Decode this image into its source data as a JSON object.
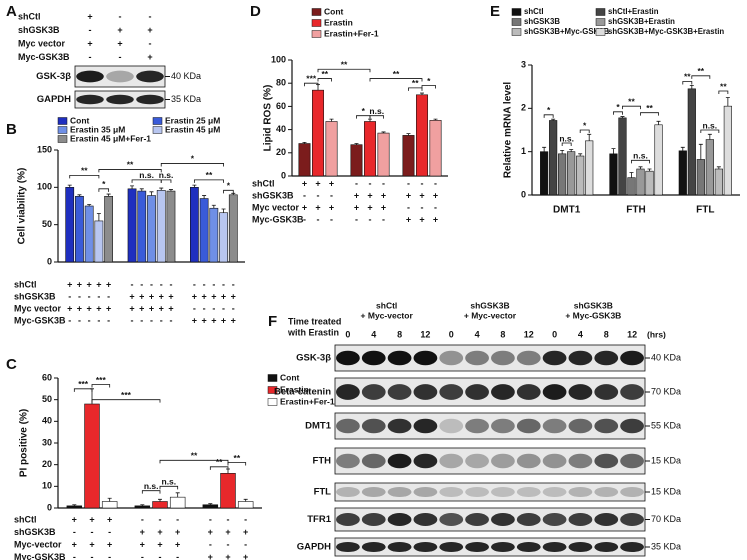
{
  "chart_data": [
    {
      "type": "bar",
      "label": "B",
      "ylabel": "Cell viability (%)",
      "ylim": [
        0,
        150
      ],
      "yticks": [
        0,
        50,
        100,
        150
      ],
      "series": [
        {
          "name": "Cont",
          "color": "#1f2fbf",
          "values": [
            100,
            98,
            100
          ],
          "errors": [
            3,
            4,
            3
          ]
        },
        {
          "name": "Erastin 25 μM",
          "color": "#3a5bd9",
          "values": [
            88,
            95,
            85
          ],
          "errors": [
            2,
            3,
            4
          ]
        },
        {
          "name": "Erastin 35 μM",
          "color": "#6f8fe6",
          "values": [
            75,
            89,
            72
          ],
          "errors": [
            2,
            5,
            4
          ]
        },
        {
          "name": "Erastin 45 μM",
          "color": "#b8c6f0",
          "values": [
            55,
            96,
            66
          ],
          "errors": [
            10,
            3,
            5
          ]
        },
        {
          "name": "Erastin 45 μM+Fer-1",
          "color": "#8c8c8c",
          "values": [
            88,
            95,
            90
          ],
          "errors": [
            3,
            2,
            2
          ]
        }
      ],
      "conditions": [
        {
          "label": "shCtl",
          "signs": [
            "+",
            "+",
            "+",
            "+",
            "+",
            "-",
            "-",
            "-",
            "-",
            "-",
            "-",
            "-",
            "-",
            "-",
            "-"
          ]
        },
        {
          "label": "shGSK3B",
          "signs": [
            "-",
            "-",
            "-",
            "-",
            "-",
            "+",
            "+",
            "+",
            "+",
            "+",
            "+",
            "+",
            "+",
            "+",
            "+"
          ]
        },
        {
          "label": "Myc vector",
          "signs": [
            "+",
            "+",
            "+",
            "+",
            "+",
            "+",
            "+",
            "+",
            "+",
            "+",
            "-",
            "-",
            "-",
            "-",
            "-"
          ]
        },
        {
          "label": "Myc-GSK3B",
          "signs": [
            "-",
            "-",
            "-",
            "-",
            "-",
            "-",
            "-",
            "-",
            "-",
            "-",
            "+",
            "+",
            "+",
            "+",
            "+"
          ]
        }
      ],
      "annotations": [
        "**",
        "*",
        "**",
        "*",
        "n.s.",
        "n.s.",
        "**",
        "*"
      ]
    },
    {
      "type": "bar",
      "label": "C",
      "ylabel": "PI positive (%)",
      "ylim": [
        0,
        60
      ],
      "yticks": [
        0,
        10,
        20,
        30,
        40,
        50,
        60
      ],
      "series": [
        {
          "name": "Cont",
          "color": "#111111",
          "values": [
            1,
            1,
            1.5
          ],
          "errors": [
            0.5,
            0.5,
            0.5
          ]
        },
        {
          "name": "Erastin",
          "color": "#e8282b",
          "values": [
            48,
            3,
            16
          ],
          "errors": [
            7,
            1,
            2
          ]
        },
        {
          "name": "Erastin+Fer-1",
          "color": "#ffffff",
          "values": [
            3,
            5,
            3
          ],
          "errors": [
            1.5,
            2,
            1
          ]
        }
      ],
      "conditions": [
        {
          "label": "shCtl",
          "signs": [
            "+",
            "+",
            "+",
            "-",
            "-",
            "-",
            "-",
            "-",
            "-"
          ]
        },
        {
          "label": "shGSK3B",
          "signs": [
            "-",
            "-",
            "-",
            "+",
            "+",
            "+",
            "+",
            "+",
            "+"
          ]
        },
        {
          "label": "Myc-vector",
          "signs": [
            "+",
            "+",
            "+",
            "+",
            "+",
            "+",
            "-",
            "-",
            "-"
          ]
        },
        {
          "label": "Myc-GSK3B",
          "signs": [
            "-",
            "-",
            "-",
            "-",
            "-",
            "-",
            "+",
            "+",
            "+"
          ]
        }
      ],
      "annotations": [
        "***",
        "***",
        "***",
        "n.s.",
        "n.s.",
        "**",
        "**",
        "**"
      ]
    },
    {
      "type": "bar",
      "label": "D",
      "ylabel": "Lipid ROS (%)",
      "ylim": [
        0,
        100
      ],
      "yticks": [
        0,
        20,
        40,
        60,
        80,
        100
      ],
      "series": [
        {
          "name": "Cont",
          "color": "#7b1c1c",
          "values": [
            28,
            27,
            35
          ],
          "errors": [
            1,
            1,
            1.5
          ]
        },
        {
          "name": "Erastin",
          "color": "#e8282b",
          "values": [
            74,
            47,
            70
          ],
          "errors": [
            5,
            2,
            1.5
          ]
        },
        {
          "name": "Erastin+Fer-1",
          "color": "#f0a0a0",
          "values": [
            47,
            37,
            48
          ],
          "errors": [
            2,
            1,
            1
          ]
        }
      ],
      "conditions": [
        {
          "label": "shCtl",
          "signs": [
            "+",
            "+",
            "+",
            "-",
            "-",
            "-",
            "-",
            "-",
            "-"
          ]
        },
        {
          "label": "shGSK3B",
          "signs": [
            "-",
            "-",
            "-",
            "+",
            "+",
            "+",
            "+",
            "+",
            "+"
          ]
        },
        {
          "label": "Myc vector",
          "signs": [
            "+",
            "+",
            "+",
            "+",
            "+",
            "+",
            "-",
            "-",
            "-"
          ]
        },
        {
          "label": "Myc-GSK3B",
          "signs": [
            "-",
            "-",
            "-",
            "-",
            "-",
            "-",
            "+",
            "+",
            "+"
          ]
        }
      ],
      "annotations": [
        "***",
        "**",
        "**",
        "*",
        "n.s.",
        "**",
        "**",
        "*"
      ]
    },
    {
      "type": "bar",
      "label": "E",
      "ylabel": "Relative mRNA level",
      "ylim": [
        0,
        3
      ],
      "yticks": [
        0,
        1,
        2,
        3
      ],
      "categories": [
        "DMT1",
        "FTH",
        "FTL"
      ],
      "series": [
        {
          "name": "shCtl",
          "color": "#111111",
          "values": [
            1.0,
            0.95,
            1.02
          ],
          "errors": [
            0.1,
            0.12,
            0.08
          ]
        },
        {
          "name": "shCtl+Erastin",
          "color": "#444444",
          "values": [
            1.72,
            1.78,
            2.45
          ],
          "errors": [
            0.03,
            0.03,
            0.08
          ]
        },
        {
          "name": "shGSK3B",
          "color": "#777777",
          "values": [
            0.95,
            0.4,
            0.82
          ],
          "errors": [
            0.08,
            0.12,
            0.35
          ]
        },
        {
          "name": "shGSK3B+Erastin",
          "color": "#999999",
          "values": [
            1.0,
            0.6,
            1.28
          ],
          "errors": [
            0.05,
            0.05,
            0.12
          ]
        },
        {
          "name": "shGSK3B+Myc-GSK3B",
          "color": "#bbbbbb",
          "values": [
            0.9,
            0.55,
            0.6
          ],
          "errors": [
            0.05,
            0.05,
            0.05
          ]
        },
        {
          "name": "shGSK3B+Myc-GSK3B+Erastin",
          "color": "#dddddd",
          "values": [
            1.25,
            1.62,
            2.05
          ],
          "errors": [
            0.15,
            0.08,
            0.2
          ]
        }
      ],
      "annotations": [
        "*",
        "n.s.",
        "*",
        "*",
        "**",
        "n.s.",
        "**",
        "**",
        "**",
        "n.s.",
        "**"
      ]
    }
  ],
  "blot_a": {
    "label": "A",
    "rows": [
      {
        "label": "shCtl",
        "signs": [
          "+",
          "-",
          "-"
        ]
      },
      {
        "label": "shGSK3B",
        "signs": [
          "-",
          "+",
          "+"
        ]
      },
      {
        "label": "Myc vector",
        "signs": [
          "+",
          "+",
          "-"
        ]
      },
      {
        "label": "Myc-GSK3B",
        "signs": [
          "-",
          "-",
          "+"
        ]
      }
    ],
    "bands": [
      {
        "name": "GSK-3β",
        "size": "40 KDa"
      },
      {
        "name": "GAPDH",
        "size": "35 KDa"
      }
    ]
  },
  "blot_f": {
    "label": "F",
    "time_title": [
      "Time treated",
      "with Erastin"
    ],
    "groups": [
      [
        "shCtl",
        "+ Myc-vector"
      ],
      [
        "shGSK3B",
        "+ Myc-vector"
      ],
      [
        "shGSK3B",
        "+ Myc-GSK3B"
      ]
    ],
    "times": [
      0,
      4,
      8,
      12,
      0,
      4,
      8,
      12,
      0,
      4,
      8,
      12
    ],
    "unit": "(hrs)",
    "bands": [
      {
        "name": "GSK-3β",
        "size": "40 KDa"
      },
      {
        "name": "Beta-catenin",
        "size": "70 KDa"
      },
      {
        "name": "DMT1",
        "size": "55 KDa"
      },
      {
        "name": "FTH",
        "size": "15 KDa"
      },
      {
        "name": "FTL",
        "size": "15 KDa"
      },
      {
        "name": "TFR1",
        "size": "70 KDa"
      },
      {
        "name": "GAPDH",
        "size": "35 KDa"
      }
    ]
  }
}
